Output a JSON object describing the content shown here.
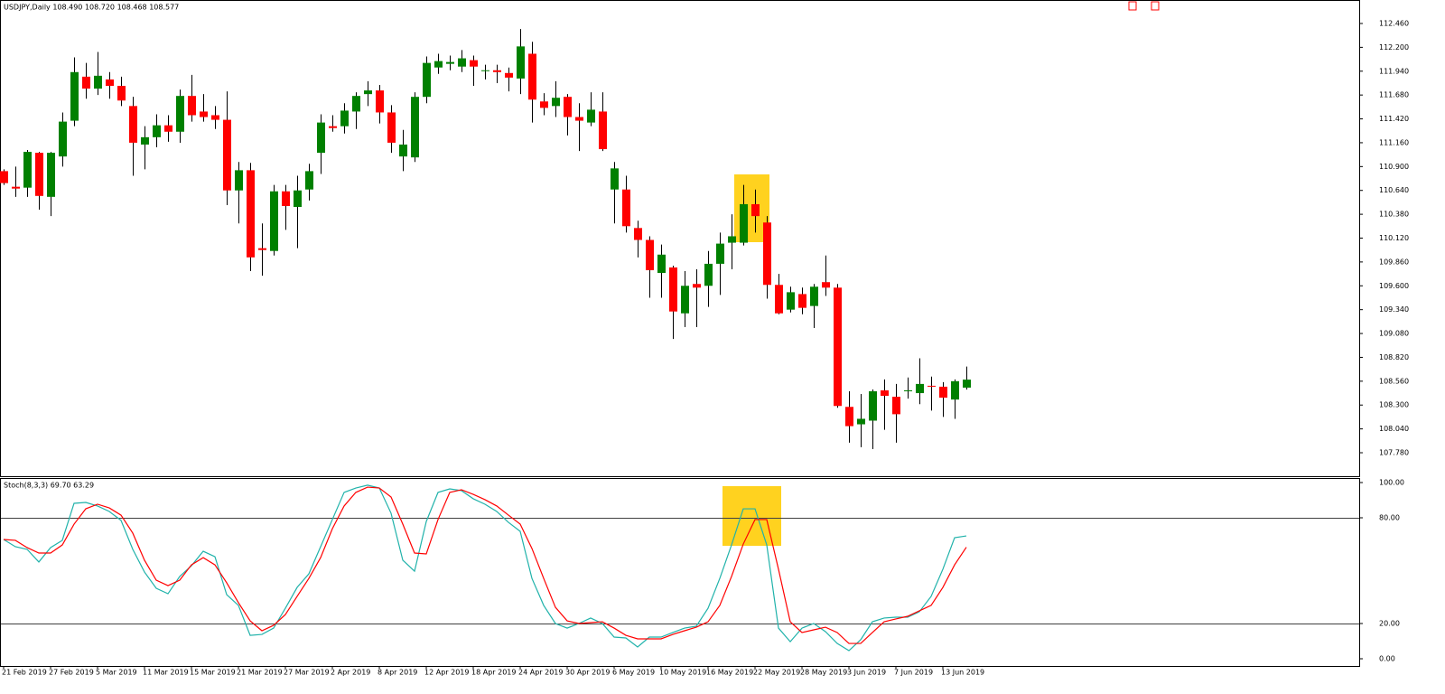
{
  "chart_data": [
    {
      "type": "candlestick",
      "title": "USDJPY,Daily  108.490 108.720 108.468 108.577",
      "up_color": "#008000",
      "down_color": "#ff0000",
      "wick_color": "#000000",
      "open": [
        110.85,
        110.68,
        110.67,
        111.05,
        110.57,
        111.01,
        111.4,
        111.88,
        111.75,
        111.85,
        111.78,
        111.56,
        111.14,
        111.22,
        111.35,
        111.28,
        111.67,
        111.5,
        111.46,
        111.41,
        110.64,
        110.86,
        110.01,
        109.98,
        110.63,
        110.46,
        110.65,
        111.05,
        111.34,
        111.34,
        111.5,
        111.69,
        111.73,
        111.49,
        111.01,
        111.0,
        111.66,
        111.98,
        112.02,
        111.99,
        112.06,
        111.94,
        111.95,
        111.92,
        111.86,
        112.13,
        111.61,
        111.56,
        111.66,
        111.44,
        111.38,
        111.5,
        110.65,
        110.65,
        110.23,
        110.1,
        109.74,
        109.8,
        109.3,
        109.62,
        109.6,
        109.84,
        110.07,
        110.07,
        110.49,
        110.29,
        109.61,
        109.34,
        109.51,
        109.38,
        109.64,
        109.58,
        108.28,
        108.09,
        108.13,
        108.46,
        108.39,
        108.45,
        108.43,
        108.51,
        108.5,
        108.36,
        108.49
      ],
      "high": [
        110.87,
        110.9,
        111.08,
        111.06,
        111.06,
        111.49,
        112.09,
        112.03,
        112.15,
        111.93,
        111.88,
        111.66,
        111.34,
        111.47,
        111.46,
        111.74,
        111.9,
        111.69,
        111.56,
        111.72,
        110.95,
        110.94,
        110.28,
        110.7,
        110.7,
        110.8,
        110.93,
        111.47,
        111.46,
        111.59,
        111.71,
        111.83,
        111.79,
        111.57,
        111.3,
        111.71,
        112.1,
        112.13,
        112.11,
        112.17,
        112.11,
        112.01,
        112.01,
        111.98,
        112.4,
        112.26,
        111.7,
        111.83,
        111.69,
        111.59,
        111.71,
        111.71,
        110.95,
        110.8,
        110.31,
        110.14,
        110.05,
        109.82,
        109.76,
        109.78,
        109.98,
        110.18,
        110.38,
        110.7,
        110.65,
        110.36,
        109.73,
        109.59,
        109.58,
        109.62,
        109.93,
        109.62,
        108.45,
        108.42,
        108.47,
        108.58,
        108.53,
        108.6,
        108.81,
        108.61,
        108.55,
        108.58,
        108.72
      ],
      "low": [
        110.7,
        110.57,
        110.57,
        110.43,
        110.36,
        110.9,
        111.34,
        111.64,
        111.68,
        111.64,
        111.56,
        110.8,
        110.87,
        111.11,
        111.17,
        111.16,
        111.39,
        111.39,
        111.31,
        110.48,
        110.28,
        109.76,
        109.71,
        109.93,
        110.21,
        110.01,
        110.53,
        110.82,
        111.28,
        111.26,
        111.31,
        111.56,
        111.37,
        111.05,
        110.85,
        110.95,
        111.59,
        111.91,
        111.95,
        111.93,
        111.78,
        111.85,
        111.81,
        111.72,
        111.69,
        111.38,
        111.46,
        111.44,
        111.24,
        111.07,
        111.34,
        111.07,
        110.28,
        110.18,
        109.91,
        109.47,
        109.47,
        109.02,
        109.15,
        109.15,
        109.37,
        109.5,
        109.78,
        110.04,
        110.18,
        109.46,
        109.29,
        109.31,
        109.29,
        109.14,
        109.49,
        108.27,
        107.89,
        107.84,
        107.82,
        108.03,
        107.89,
        108.37,
        108.31,
        108.24,
        108.17,
        108.15,
        108.468
      ],
      "close": [
        110.72,
        110.66,
        111.06,
        110.58,
        111.05,
        111.39,
        111.93,
        111.75,
        111.89,
        111.78,
        111.62,
        111.16,
        111.22,
        111.35,
        111.28,
        111.67,
        111.46,
        111.44,
        111.41,
        110.64,
        110.86,
        109.91,
        109.99,
        110.63,
        110.47,
        110.64,
        110.85,
        111.38,
        111.32,
        111.51,
        111.67,
        111.73,
        111.49,
        111.16,
        111.14,
        111.66,
        112.03,
        112.05,
        112.04,
        112.08,
        111.99,
        111.95,
        111.93,
        111.87,
        112.21,
        111.63,
        111.54,
        111.65,
        111.44,
        111.4,
        111.52,
        111.09,
        110.88,
        110.25,
        110.1,
        109.77,
        109.94,
        109.32,
        109.6,
        109.58,
        109.84,
        110.06,
        110.14,
        110.49,
        110.36,
        109.61,
        109.3,
        109.53,
        109.36,
        109.59,
        109.58,
        108.29,
        108.07,
        108.15,
        108.45,
        108.4,
        108.2,
        108.46,
        108.53,
        108.5,
        108.38,
        108.56,
        108.577
      ],
      "ylim": [
        107.524,
        112.716
      ],
      "yticks": [
        {
          "value": 112.46,
          "label": "112.460"
        },
        {
          "value": 112.2,
          "label": "112.200"
        },
        {
          "value": 111.94,
          "label": "111.940"
        },
        {
          "value": 111.68,
          "label": "111.680"
        },
        {
          "value": 111.42,
          "label": "111.420"
        },
        {
          "value": 111.16,
          "label": "111.160"
        },
        {
          "value": 110.9,
          "label": "110.900"
        },
        {
          "value": 110.64,
          "label": "110.640"
        },
        {
          "value": 110.38,
          "label": "110.380"
        },
        {
          "value": 110.12,
          "label": "110.120"
        },
        {
          "value": 109.86,
          "label": "109.860"
        },
        {
          "value": 109.6,
          "label": "109.600"
        },
        {
          "value": 109.34,
          "label": "109.340"
        },
        {
          "value": 109.08,
          "label": "109.080"
        },
        {
          "value": 108.82,
          "label": "108.820"
        },
        {
          "value": 108.56,
          "label": "108.560"
        },
        {
          "value": 108.3,
          "label": "108.300"
        },
        {
          "value": 108.04,
          "label": "108.040"
        },
        {
          "value": 107.78,
          "label": "107.780"
        }
      ]
    },
    {
      "type": "line",
      "title": "Stoch(8,3,3) 69.70 63.29",
      "categories": [
        "21 Feb 2019",
        null,
        null,
        null,
        "27 Feb 2019",
        null,
        null,
        null,
        "5 Mar 2019",
        null,
        null,
        null,
        "11 Mar 2019",
        null,
        null,
        null,
        "15 Mar 2019",
        null,
        null,
        null,
        "21 Mar 2019",
        null,
        null,
        null,
        "27 Mar 2019",
        null,
        null,
        null,
        "2 Apr 2019",
        null,
        null,
        null,
        "8 Apr 2019",
        null,
        null,
        null,
        "12 Apr 2019",
        null,
        null,
        null,
        "18 Apr 2019",
        null,
        null,
        null,
        "24 Apr 2019",
        null,
        null,
        null,
        "30 Apr 2019",
        null,
        null,
        null,
        "6 May 2019",
        null,
        null,
        null,
        "10 May 2019",
        null,
        null,
        null,
        "16 May 2019",
        null,
        null,
        null,
        "22 May 2019",
        null,
        null,
        null,
        "28 May 2019",
        null,
        null,
        null,
        "3 Jun 2019",
        null,
        null,
        null,
        "7 Jun 2019",
        null,
        null,
        null,
        "13 Jun 2019",
        null,
        null
      ],
      "series": [
        {
          "color": "#20b2aa",
          "values": [
            67.7,
            63.6,
            62.1,
            54.9,
            63.1,
            67.2,
            88.2,
            88.7,
            86.7,
            83.6,
            78.5,
            62.1,
            49.2,
            40.0,
            36.9,
            46.7,
            52.8,
            61.0,
            57.9,
            36.4,
            30.3,
            13.3,
            13.8,
            17.4,
            28.7,
            40.5,
            48.2,
            63.6,
            79.0,
            94.4,
            96.9,
            98.5,
            96.9,
            82.6,
            55.9,
            49.7,
            77.9,
            94.4,
            96.4,
            95.4,
            90.8,
            87.7,
            83.6,
            77.4,
            72.3,
            45.6,
            30.3,
            20.0,
            17.4,
            20.0,
            23.1,
            20.0,
            12.3,
            11.8,
            6.7,
            12.3,
            12.3,
            14.9,
            17.4,
            18.5,
            28.7,
            45.6,
            64.6,
            85.1,
            85.1,
            64.6,
            17.4,
            9.7,
            17.4,
            20.0,
            15.4,
            8.7,
            4.6,
            10.8,
            21.0,
            23.1,
            23.6,
            23.6,
            26.7,
            35.4,
            50.8,
            68.7,
            69.7
          ]
        },
        {
          "color": "#ff0000",
          "values": [
            67.7,
            67.2,
            63.1,
            60.0,
            60.0,
            64.6,
            76.4,
            85.1,
            87.7,
            85.6,
            81.5,
            71.3,
            55.9,
            44.6,
            41.5,
            44.6,
            53.3,
            57.4,
            53.3,
            43.1,
            31.8,
            21.5,
            15.9,
            19.0,
            25.1,
            35.4,
            45.6,
            57.4,
            73.8,
            86.7,
            94.4,
            97.4,
            96.9,
            91.8,
            76.4,
            60.0,
            59.5,
            79.0,
            94.4,
            95.9,
            93.3,
            90.3,
            86.7,
            81.5,
            76.4,
            62.6,
            45.6,
            29.2,
            21.5,
            20.0,
            20.5,
            21.0,
            17.4,
            13.3,
            11.3,
            11.3,
            11.3,
            13.8,
            15.9,
            17.9,
            21.0,
            30.3,
            46.7,
            65.1,
            79.0,
            79.0,
            50.8,
            21.0,
            14.9,
            16.4,
            17.9,
            14.9,
            8.7,
            8.7,
            14.9,
            21.0,
            22.6,
            24.1,
            27.2,
            30.3,
            40.5,
            53.3,
            63.29
          ]
        }
      ],
      "levels": [
        80,
        20
      ],
      "ylim": [
        -4.1,
        102.56
      ],
      "yticks": [
        {
          "value": 100,
          "label": "100.00"
        },
        {
          "value": 80,
          "label": "80.00"
        },
        {
          "value": 20,
          "label": "20.00"
        },
        {
          "value": 0,
          "label": "0.00"
        }
      ]
    }
  ]
}
